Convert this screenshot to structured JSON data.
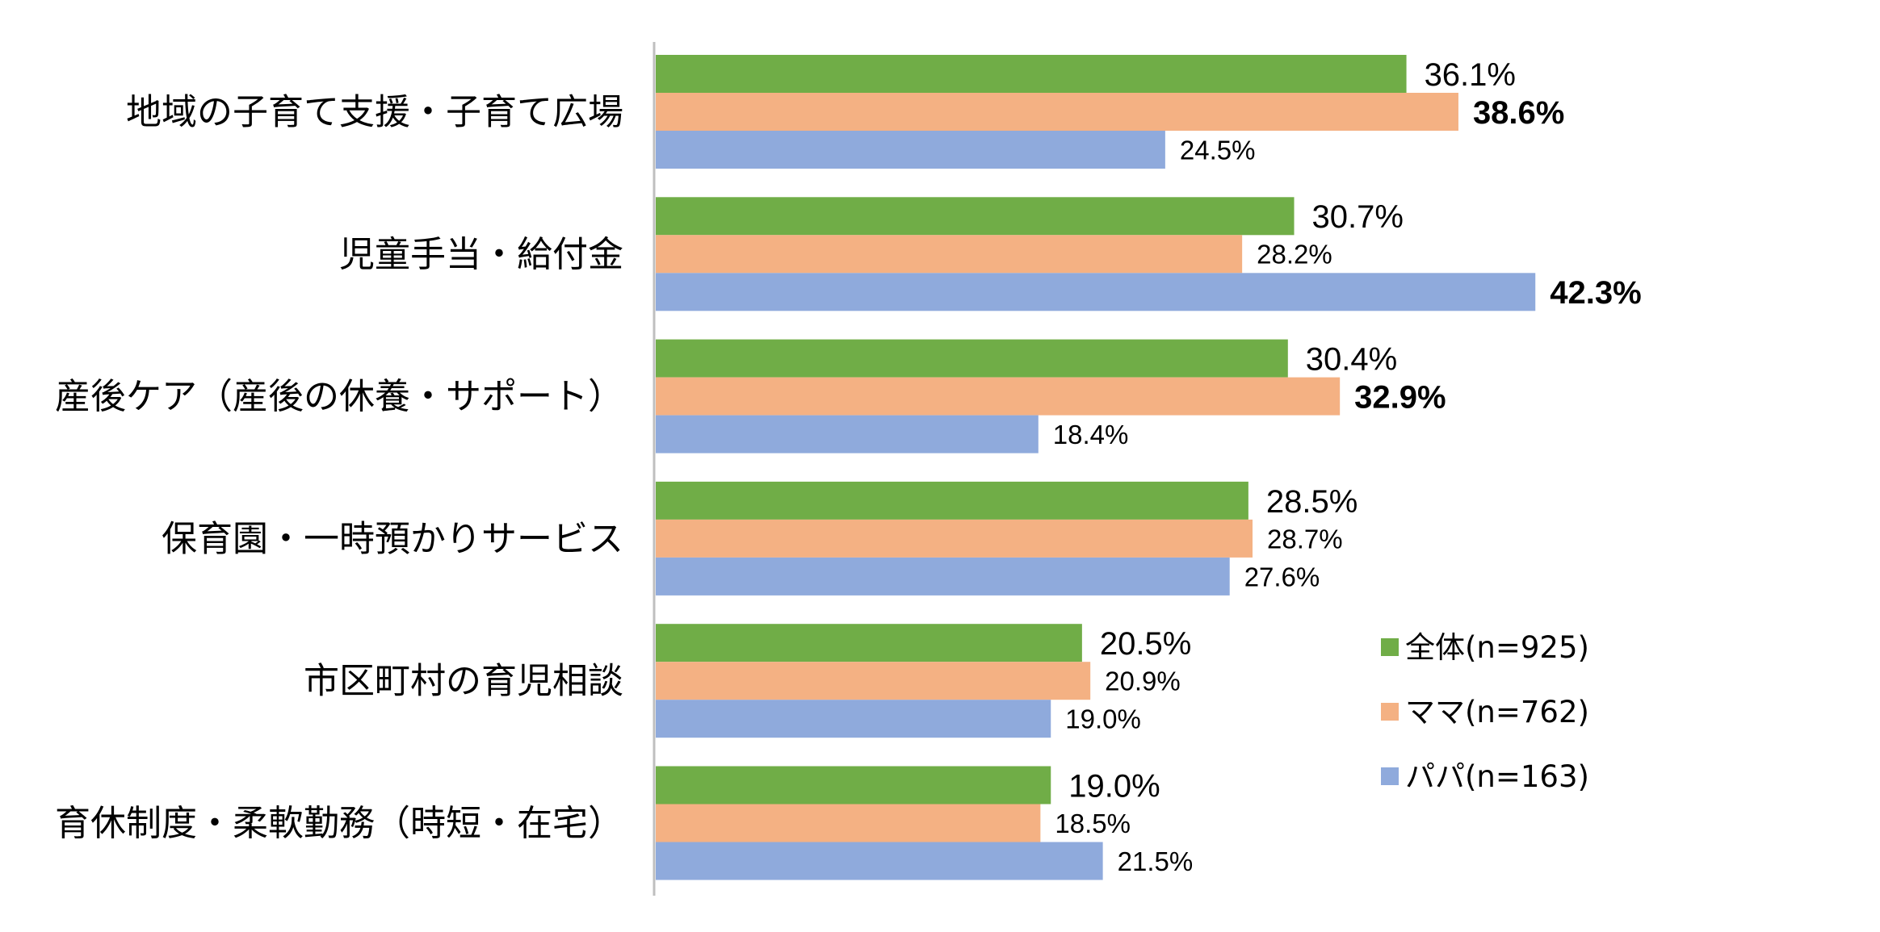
{
  "chart_data": {
    "type": "bar",
    "orientation": "horizontal",
    "categories": [
      "地域の子育て支援・子育て広場",
      "児童手当・給付金",
      "産後ケア（産後の休養・サポート）",
      "保育園・一時預かりサービス",
      "市区町村の育児相談",
      "育休制度・柔軟勤務（時短・在宅）"
    ],
    "series": [
      {
        "name": "全体(n=925)",
        "color": "#70AD47",
        "values": [
          36.1,
          30.7,
          30.4,
          28.5,
          20.5,
          19.0
        ],
        "labels": [
          "36.1%",
          "30.7%",
          "30.4%",
          "28.5%",
          "20.5%",
          "19.0%"
        ]
      },
      {
        "name": "ママ(n=762)",
        "color": "#F4B183",
        "values": [
          38.6,
          28.2,
          32.9,
          28.7,
          20.9,
          18.5
        ],
        "labels": [
          "38.6%",
          "28.2%",
          "32.9%",
          "28.7%",
          "20.9%",
          "18.5%"
        ]
      },
      {
        "name": "パパ(n=163)",
        "color": "#8FAADC",
        "values": [
          24.5,
          42.3,
          18.4,
          27.6,
          19.0,
          21.5
        ],
        "labels": [
          "24.5%",
          "42.3%",
          "18.4%",
          "27.6%",
          "19.0%",
          "21.5%"
        ]
      }
    ],
    "highlights": [
      {
        "category_index": 0,
        "series_index": 1,
        "color": "#FF0000"
      },
      {
        "category_index": 1,
        "series_index": 2,
        "color": "#FF0000"
      },
      {
        "category_index": 2,
        "series_index": 1,
        "color": "#000000"
      }
    ],
    "xlim": [
      0,
      50
    ],
    "axis_visible": false,
    "grid": false,
    "legend_position": "right"
  }
}
